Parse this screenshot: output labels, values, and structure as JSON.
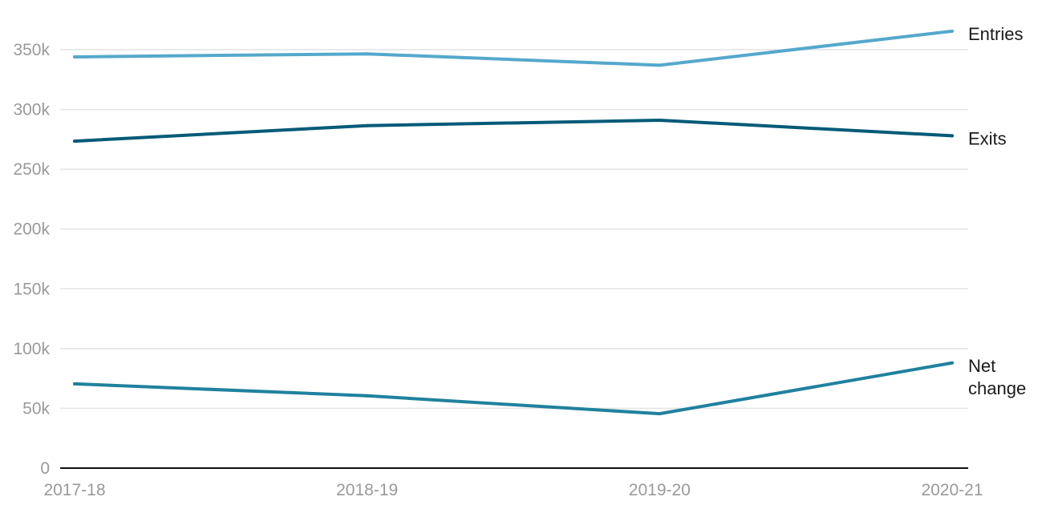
{
  "chart_data": {
    "type": "line",
    "x": [
      "2017-18",
      "2018-19",
      "2019-20",
      "2020-21"
    ],
    "ylim": [
      0,
      350000
    ],
    "yticks": [
      {
        "value": 0,
        "label": "0"
      },
      {
        "value": 50000,
        "label": "50k"
      },
      {
        "value": 100000,
        "label": "100k"
      },
      {
        "value": 150000,
        "label": "150k"
      },
      {
        "value": 200000,
        "label": "200k"
      },
      {
        "value": 250000,
        "label": "250k"
      },
      {
        "value": 300000,
        "label": "300k"
      },
      {
        "value": 350000,
        "label": "350k"
      }
    ],
    "grid": true,
    "legend": "direct labels at line ends",
    "series": [
      {
        "key": "entries",
        "name": "Entries",
        "label_lines": [
          "Entries"
        ],
        "color": "#55a8cc",
        "values": [
          344000,
          346500,
          337000,
          365500
        ]
      },
      {
        "key": "exits",
        "name": "Exits",
        "label_lines": [
          "Exits"
        ],
        "color": "#005a78",
        "values": [
          273500,
          286500,
          291000,
          278000
        ]
      },
      {
        "key": "net-change",
        "name": "Net change",
        "label_lines": [
          "Net",
          "change"
        ],
        "color": "#20819e",
        "values": [
          70500,
          60500,
          45500,
          88000
        ]
      }
    ]
  }
}
